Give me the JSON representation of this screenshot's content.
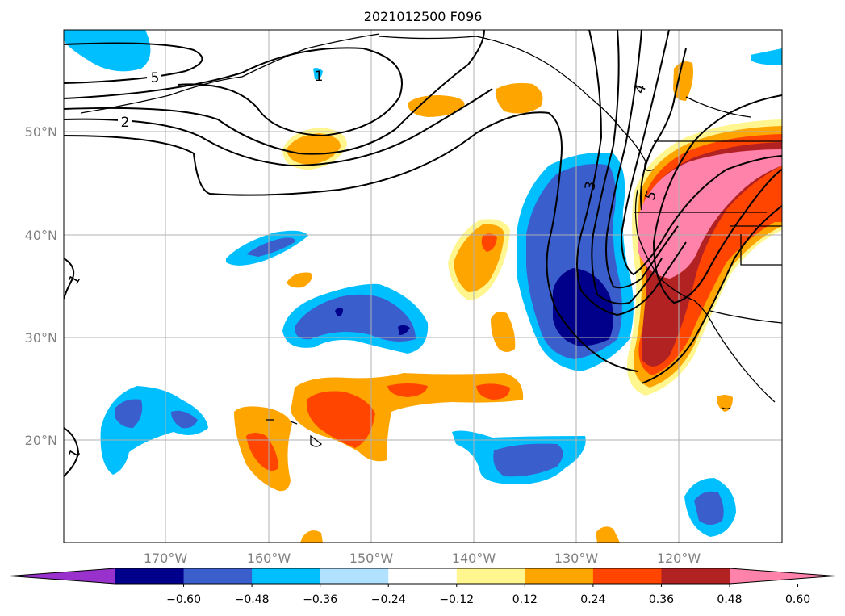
{
  "title": "2021012500 F096",
  "map": {
    "lat_labels": [
      "50°N",
      "40°N",
      "30°N",
      "20°N"
    ],
    "lon_labels": [
      "170°W",
      "160°W",
      "150°W",
      "140°W",
      "130°W",
      "120°W"
    ],
    "contour_labels": [
      "5",
      "2",
      "1",
      "3",
      "4",
      "5",
      "1",
      "1"
    ],
    "grid": true,
    "coastlines": true
  },
  "colorbar": {
    "colors": [
      "#9932cc",
      "#00008b",
      "#3a5fcd",
      "#00bfff",
      "#b0e2ff",
      "#ffffff",
      "#fff68f",
      "#ffa500",
      "#ff4500",
      "#b22222",
      "#ff82ab"
    ],
    "tick_labels": [
      "−0.60",
      "−0.48",
      "−0.36",
      "−0.24",
      "−0.12",
      "0.12",
      "0.24",
      "0.36",
      "0.48",
      "0.60"
    ],
    "extend": "both"
  }
}
